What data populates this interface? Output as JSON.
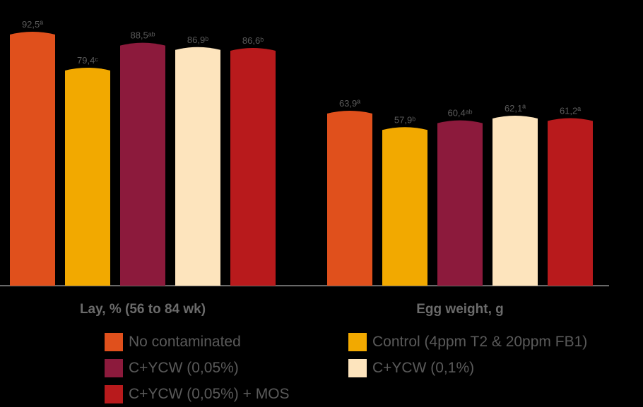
{
  "chart_data": {
    "type": "bar",
    "categories": [
      "Lay, % (56 to 84 wk)",
      "Egg weight, g"
    ],
    "series": [
      {
        "name": "No contaminated",
        "color": "#e0501c",
        "values": [
          92.5,
          63.9
        ],
        "labels": [
          "92,5ª",
          "63,9ª"
        ]
      },
      {
        "name": "Control (4ppm T2 & 20ppm FB1)",
        "color": "#f2a900",
        "values": [
          79.4,
          57.9
        ],
        "labels": [
          "79,4ᶜ",
          "57,9ᵇ"
        ]
      },
      {
        "name": "C+YCW (0,05%)",
        "color": "#8c1a3c",
        "values": [
          88.5,
          60.4
        ],
        "labels": [
          "88,5ᵃᵇ",
          "60,4ᵃᵇ"
        ]
      },
      {
        "name": "C+YCW (0,1%)",
        "color": "#fde4bd",
        "values": [
          86.9,
          62.1
        ],
        "labels": [
          "86,9ᵇ",
          "62,1ª"
        ]
      },
      {
        "name": "C+YCW (0,05%) + MOS",
        "color": "#b81a1c",
        "values": [
          86.6,
          61.2
        ],
        "labels": [
          "86,6ᵇ",
          "61,2ª"
        ]
      }
    ],
    "legend_position": "bottom",
    "grid": false,
    "axis_color": "#8a8a8a"
  }
}
